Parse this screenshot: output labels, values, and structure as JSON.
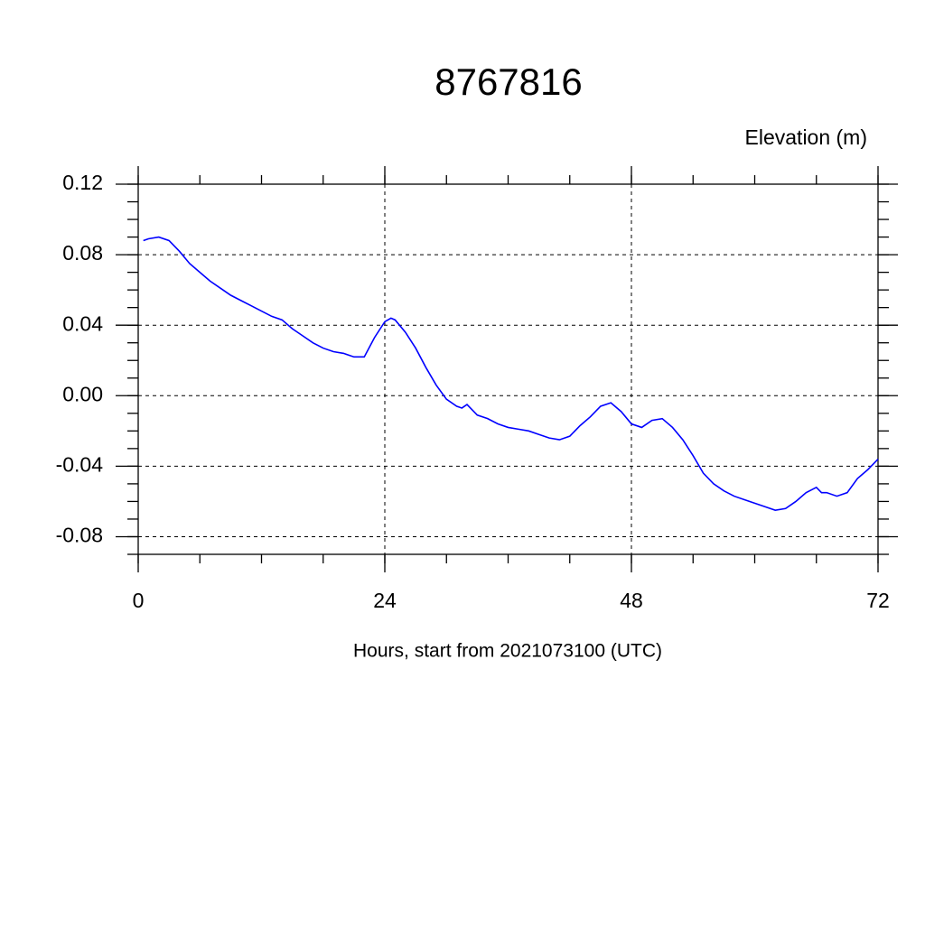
{
  "chart_data": {
    "type": "line",
    "title": "8767816",
    "ylabel": "Elevation (m)",
    "xlabel": "Hours, start from 2021073100 (UTC)",
    "xlim": [
      0,
      72
    ],
    "xticks": [
      0,
      24,
      48,
      72
    ],
    "ylim": [
      -0.09,
      0.12
    ],
    "yticks": [
      0.12,
      0.08,
      0.04,
      {
        "value": 0,
        "label": "0.00"
      },
      -0.04,
      -0.08
    ],
    "grid": true,
    "series": [
      {
        "color": "#0000ff",
        "x": [
          0.5,
          1,
          2,
          3,
          4,
          5,
          6,
          7,
          8,
          9,
          10,
          11,
          12,
          13,
          14,
          15,
          16,
          17,
          18,
          19,
          20,
          21,
          22,
          23,
          24,
          24.6,
          25,
          26,
          27,
          28,
          29,
          30,
          31,
          31.5,
          32,
          33,
          34,
          35,
          36,
          37,
          38,
          39,
          40,
          41,
          42,
          43,
          44,
          45,
          46,
          47,
          48,
          49,
          50,
          51,
          52,
          53,
          54,
          55,
          56,
          57,
          58,
          59,
          60,
          61,
          62,
          63,
          64,
          65,
          66,
          66.5,
          67,
          68,
          69,
          70,
          71,
          72
        ],
        "values": [
          0.088,
          0.089,
          0.09,
          0.088,
          0.082,
          0.075,
          0.07,
          0.065,
          0.061,
          0.057,
          0.054,
          0.051,
          0.048,
          0.045,
          0.043,
          0.038,
          0.034,
          0.03,
          0.027,
          0.025,
          0.024,
          0.022,
          0.022,
          0.033,
          0.042,
          0.044,
          0.043,
          0.036,
          0.027,
          0.016,
          0.006,
          -0.002,
          -0.006,
          -0.007,
          -0.005,
          -0.011,
          -0.013,
          -0.016,
          -0.018,
          -0.019,
          -0.02,
          -0.022,
          -0.024,
          -0.025,
          -0.023,
          -0.017,
          -0.012,
          -0.006,
          -0.004,
          -0.009,
          -0.016,
          -0.018,
          -0.014,
          -0.013,
          -0.018,
          -0.025,
          -0.034,
          -0.044,
          -0.05,
          -0.054,
          -0.057,
          -0.059,
          -0.061,
          -0.063,
          -0.065,
          -0.064,
          -0.06,
          -0.055,
          -0.052,
          -0.055,
          -0.055,
          -0.057,
          -0.055,
          -0.047,
          -0.042,
          -0.036
        ]
      }
    ]
  }
}
